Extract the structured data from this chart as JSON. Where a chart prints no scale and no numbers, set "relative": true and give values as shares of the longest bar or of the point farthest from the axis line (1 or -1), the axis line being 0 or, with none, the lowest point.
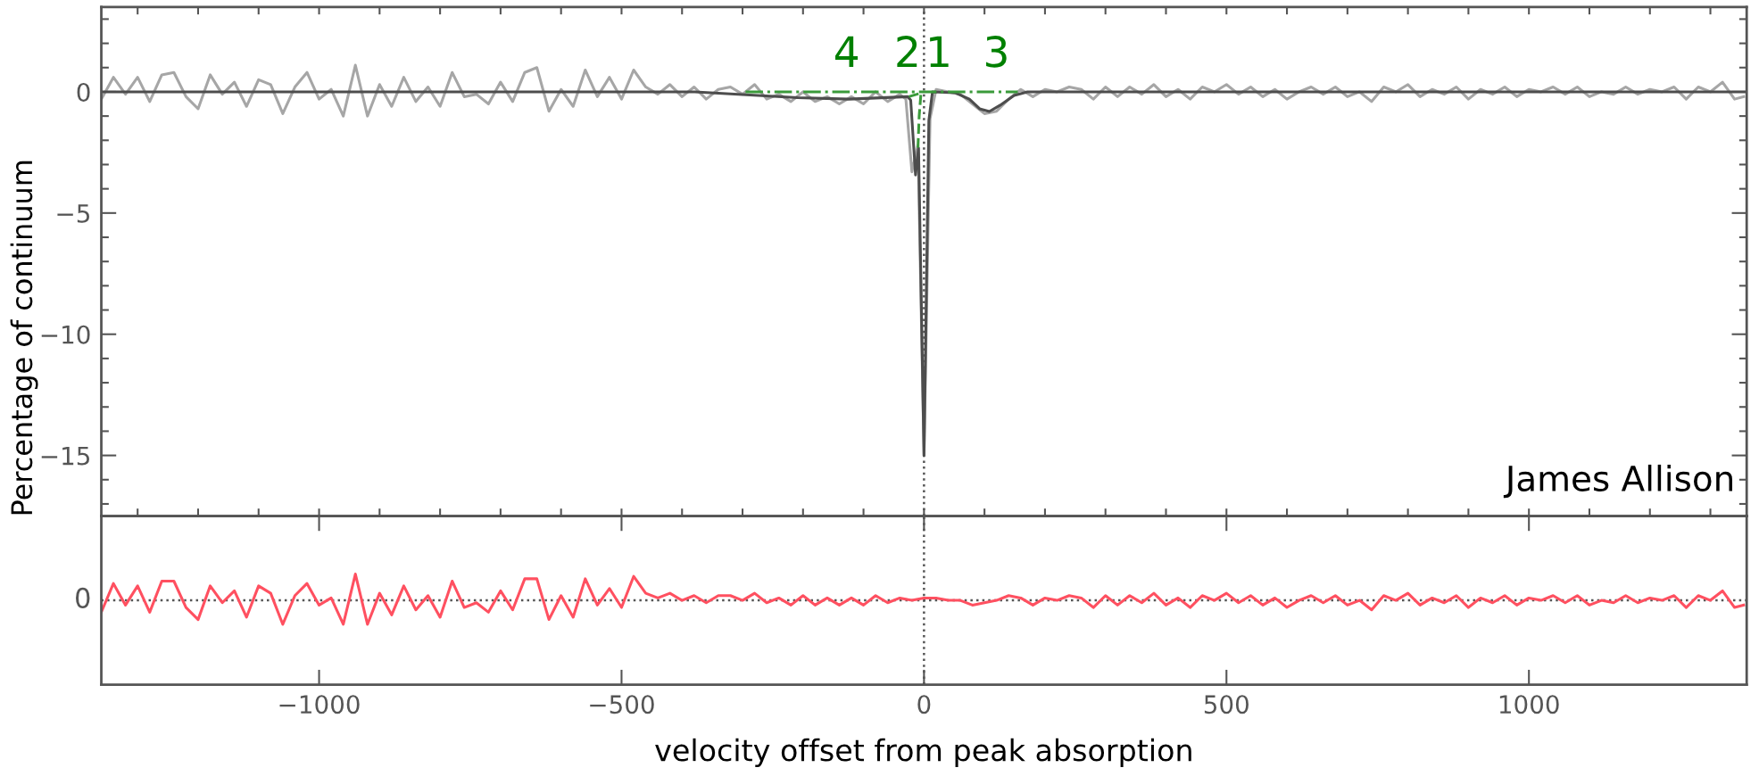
{
  "chart_data": [
    {
      "type": "line",
      "ylabel": "Percentage of continuum",
      "xlim": [
        -1360,
        1360
      ],
      "ylim": [
        -17.5,
        3.5
      ],
      "tick_labels": "y",
      "xticks": [
        {
          "value": -1300,
          "label": null
        },
        {
          "value": -1200,
          "label": null
        },
        {
          "value": -1100,
          "label": null
        },
        {
          "value": -1000,
          "label": null
        },
        {
          "value": -900,
          "label": null
        },
        {
          "value": -800,
          "label": null
        },
        {
          "value": -700,
          "label": null
        },
        {
          "value": -600,
          "label": null
        },
        {
          "value": -500,
          "label": null
        },
        {
          "value": -400,
          "label": null
        },
        {
          "value": -300,
          "label": null
        },
        {
          "value": -200,
          "label": null
        },
        {
          "value": -100,
          "label": null
        },
        {
          "value": 0,
          "label": null
        },
        {
          "value": 100,
          "label": null
        },
        {
          "value": 200,
          "label": null
        },
        {
          "value": 300,
          "label": null
        },
        {
          "value": 400,
          "label": null
        },
        {
          "value": 500,
          "label": null
        },
        {
          "value": 600,
          "label": null
        },
        {
          "value": 700,
          "label": null
        },
        {
          "value": 800,
          "label": null
        },
        {
          "value": 900,
          "label": null
        },
        {
          "value": 1000,
          "label": null
        },
        {
          "value": 1100,
          "label": null
        },
        {
          "value": 1200,
          "label": null
        },
        {
          "value": 1300,
          "label": null
        }
      ],
      "yticks": [
        {
          "value": -17,
          "label": null
        },
        {
          "value": -16,
          "label": null
        },
        {
          "value": -15,
          "label": "−15"
        },
        {
          "value": -14,
          "label": null
        },
        {
          "value": -13,
          "label": null
        },
        {
          "value": -12,
          "label": null
        },
        {
          "value": -11,
          "label": null
        },
        {
          "value": -10,
          "label": "−10"
        },
        {
          "value": -9,
          "label": null
        },
        {
          "value": -8,
          "label": null
        },
        {
          "value": -7,
          "label": null
        },
        {
          "value": -6,
          "label": null
        },
        {
          "value": -5,
          "label": "−5"
        },
        {
          "value": -4,
          "label": null
        },
        {
          "value": -3,
          "label": null
        },
        {
          "value": -2,
          "label": null
        },
        {
          "value": -1,
          "label": null
        },
        0,
        {
          "value": 1,
          "label": null
        },
        {
          "value": 2,
          "label": null
        },
        {
          "value": 3,
          "label": null
        }
      ],
      "ref_lines": [
        {
          "axis": "x",
          "value": 0,
          "line_style": "dotted",
          "color": "#555555"
        }
      ],
      "annotations": [
        "4",
        "2",
        "1",
        "3",
        "James Allison"
      ],
      "series": [
        {
          "color": "#a6a6a6",
          "line_style": "solid",
          "x": [
            -1360,
            -1340,
            -1320,
            -1300,
            -1280,
            -1260,
            -1240,
            -1220,
            -1200,
            -1180,
            -1160,
            -1140,
            -1120,
            -1100,
            -1080,
            -1060,
            -1040,
            -1020,
            -1000,
            -980,
            -960,
            -940,
            -920,
            -900,
            -880,
            -860,
            -840,
            -820,
            -800,
            -780,
            -760,
            -740,
            -720,
            -700,
            -680,
            -660,
            -640,
            -620,
            -600,
            -580,
            -560,
            -540,
            -520,
            -500,
            -480,
            -460,
            -440,
            -420,
            -400,
            -380,
            -360,
            -340,
            -320,
            -300,
            -280,
            -260,
            -240,
            -220,
            -200,
            -180,
            -160,
            -140,
            -120,
            -100,
            -80,
            -60,
            -40,
            -30,
            -20,
            -10,
            0,
            10,
            20,
            40,
            60,
            80,
            100,
            120,
            140,
            160,
            180,
            200,
            220,
            240,
            260,
            280,
            300,
            320,
            340,
            360,
            380,
            400,
            420,
            440,
            460,
            480,
            500,
            520,
            540,
            560,
            580,
            600,
            620,
            640,
            660,
            680,
            700,
            720,
            740,
            760,
            780,
            800,
            820,
            840,
            860,
            880,
            900,
            920,
            940,
            960,
            980,
            1000,
            1020,
            1040,
            1060,
            1080,
            1100,
            1120,
            1140,
            1160,
            1180,
            1200,
            1220,
            1240,
            1260,
            1280,
            1300,
            1320,
            1340,
            1355
          ],
          "values": [
            -0.3,
            0.6,
            -0.1,
            0.6,
            -0.4,
            0.7,
            0.8,
            -0.2,
            -0.7,
            0.7,
            -0.1,
            0.4,
            -0.6,
            0.5,
            0.3,
            -0.9,
            0.2,
            0.8,
            -0.3,
            0.1,
            -1.0,
            1.1,
            -1.0,
            0.3,
            -0.6,
            0.6,
            -0.4,
            0.2,
            -0.6,
            0.8,
            -0.2,
            -0.1,
            -0.5,
            0.4,
            -0.4,
            0.8,
            1.0,
            -0.8,
            0.1,
            -0.6,
            0.9,
            -0.2,
            0.6,
            -0.3,
            0.9,
            0.2,
            -0.1,
            0.3,
            -0.2,
            0.2,
            -0.3,
            0.1,
            0.2,
            -0.1,
            0.3,
            -0.3,
            -0.1,
            -0.4,
            0.0,
            -0.4,
            -0.2,
            -0.5,
            -0.2,
            -0.5,
            0.0,
            -0.4,
            -0.1,
            -0.3,
            -3.3,
            -2.2,
            -15.0,
            -1.1,
            0.1,
            0.0,
            -0.1,
            -0.5,
            -0.9,
            -0.8,
            -0.3,
            0.1,
            -0.2,
            0.1,
            0.0,
            0.2,
            0.1,
            -0.3,
            0.2,
            -0.2,
            0.2,
            -0.1,
            0.3,
            -0.2,
            0.1,
            -0.3,
            0.2,
            0.0,
            0.3,
            -0.1,
            0.2,
            -0.2,
            0.1,
            -0.3,
            0.0,
            0.2,
            -0.1,
            0.2,
            -0.2,
            0.0,
            -0.4,
            0.2,
            0.0,
            0.3,
            -0.2,
            0.1,
            -0.1,
            0.2,
            -0.3,
            0.1,
            -0.1,
            0.2,
            -0.2,
            0.1,
            0.0,
            0.2,
            -0.1,
            0.2,
            -0.2,
            0.0,
            -0.1,
            0.2,
            -0.1,
            0.1,
            0.0,
            0.2,
            -0.3,
            0.2,
            0.0,
            0.4,
            -0.3,
            -0.2
          ]
        },
        {
          "color": "#4d4d4d",
          "line_style": "solid",
          "x": [
            -1360,
            -379,
            -209,
            -124,
            -27,
            -22,
            -14,
            -9,
            0,
            8,
            14,
            52,
            75,
            92,
            108,
            126,
            149,
            171,
            1360
          ],
          "values": [
            0,
            0,
            -0.24,
            -0.3,
            -0.2,
            -0.34,
            -3.43,
            -2.32,
            -15.0,
            -1.19,
            0,
            -0.04,
            -0.3,
            -0.7,
            -0.81,
            -0.55,
            -0.15,
            0,
            0
          ]
        },
        {
          "color": "#3a9a3a",
          "line_style": "dashdot",
          "x": [
            -295,
            155
          ],
          "values": [
            0,
            0
          ]
        },
        {
          "color": "#3a9a3a",
          "line_style": "dashed",
          "x": [
            -25,
            -5,
            -8,
            -10
          ],
          "values": [
            -0.2,
            -0.05,
            -1.0,
            -2.3
          ]
        }
      ]
    },
    {
      "type": "line",
      "xlabel": "velocity offset from peak absorption",
      "xlim": [
        -1360,
        1360
      ],
      "relative": true,
      "annotations": [
        "0"
      ],
      "xticks": [
        {
          "value": -1000,
          "label": "−1000"
        },
        {
          "value": -500,
          "label": "−500"
        },
        0,
        500,
        1000
      ],
      "ref_lines": [
        {
          "axis": "x",
          "value": 0,
          "line_style": "dotted",
          "color": "#555555"
        },
        {
          "axis": "y",
          "value": 0,
          "line_style": "dotted",
          "color": "#555555"
        }
      ],
      "series": [
        {
          "color": "#ff5060",
          "line_style": "solid",
          "x": [
            -1360,
            -1340,
            -1320,
            -1300,
            -1280,
            -1260,
            -1240,
            -1220,
            -1200,
            -1180,
            -1160,
            -1140,
            -1120,
            -1100,
            -1080,
            -1060,
            -1040,
            -1020,
            -1000,
            -980,
            -960,
            -940,
            -920,
            -900,
            -880,
            -860,
            -840,
            -820,
            -800,
            -780,
            -760,
            -740,
            -720,
            -700,
            -680,
            -660,
            -640,
            -620,
            -600,
            -580,
            -560,
            -540,
            -520,
            -500,
            -480,
            -460,
            -440,
            -420,
            -400,
            -380,
            -360,
            -340,
            -320,
            -300,
            -280,
            -260,
            -240,
            -220,
            -200,
            -180,
            -160,
            -140,
            -120,
            -100,
            -80,
            -60,
            -40,
            -20,
            0,
            20,
            40,
            60,
            80,
            100,
            120,
            140,
            160,
            180,
            200,
            220,
            240,
            260,
            280,
            300,
            320,
            340,
            360,
            380,
            400,
            420,
            440,
            460,
            480,
            500,
            520,
            540,
            560,
            580,
            600,
            620,
            640,
            660,
            680,
            700,
            720,
            740,
            760,
            780,
            800,
            820,
            840,
            860,
            880,
            900,
            920,
            940,
            960,
            980,
            1000,
            1020,
            1040,
            1060,
            1080,
            1100,
            1120,
            1140,
            1160,
            1180,
            1200,
            1220,
            1240,
            1260,
            1280,
            1300,
            1320,
            1340,
            1355
          ],
          "values": [
            -0.45,
            0.64,
            -0.18,
            0.55,
            -0.45,
            0.73,
            0.73,
            -0.27,
            -0.73,
            0.55,
            -0.09,
            0.36,
            -0.64,
            0.55,
            0.27,
            -0.91,
            0.18,
            0.64,
            -0.18,
            0.09,
            -0.91,
            1,
            -0.91,
            0.27,
            -0.55,
            0.55,
            -0.36,
            0.18,
            -0.64,
            0.73,
            -0.27,
            -0.09,
            -0.45,
            0.36,
            -0.36,
            0.82,
            0.82,
            -0.73,
            0.18,
            -0.64,
            0.82,
            -0.18,
            0.45,
            -0.27,
            0.91,
            0.27,
            0.09,
            0.27,
            0.0,
            0.18,
            -0.09,
            0.18,
            0.18,
            0.0,
            0.27,
            -0.09,
            0.09,
            -0.18,
            0.18,
            -0.18,
            0.09,
            -0.18,
            0.09,
            -0.18,
            0.18,
            -0.09,
            0.09,
            0.0,
            0.09,
            0.09,
            0.0,
            0.0,
            -0.18,
            -0.09,
            0.0,
            0.18,
            0.09,
            -0.18,
            0.09,
            0.0,
            0.18,
            0.09,
            -0.27,
            0.18,
            -0.18,
            0.18,
            -0.09,
            0.27,
            -0.18,
            0.09,
            -0.27,
            0.18,
            0.0,
            0.27,
            -0.09,
            0.18,
            -0.18,
            0.09,
            -0.27,
            0.0,
            0.18,
            -0.09,
            0.18,
            -0.18,
            0.0,
            -0.36,
            0.18,
            0.0,
            0.27,
            -0.18,
            0.09,
            -0.09,
            0.18,
            -0.27,
            0.09,
            -0.09,
            0.18,
            -0.18,
            0.09,
            0.0,
            0.18,
            -0.09,
            0.18,
            -0.18,
            0.0,
            -0.09,
            0.18,
            -0.09,
            0.09,
            0.0,
            0.18,
            -0.27,
            0.18,
            0.0,
            0.36,
            -0.27,
            -0.18
          ]
        }
      ]
    }
  ]
}
